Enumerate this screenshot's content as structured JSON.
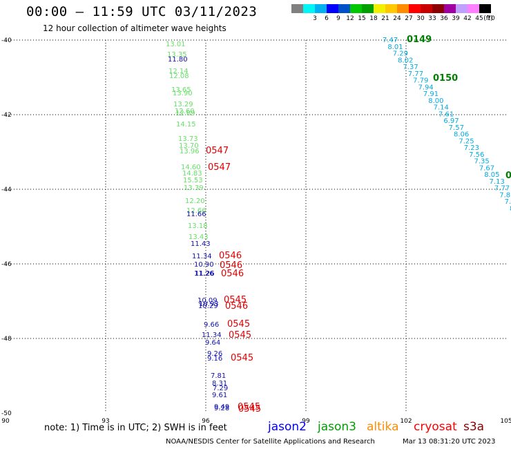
{
  "header": {
    "title": "00:00 – 11:59 UTC 03/11/2023",
    "subtitle": "12 hour collection of altimeter wave heights"
  },
  "legend": {
    "colors": [
      "#808080",
      "#00f5f5",
      "#00b0f0",
      "#0000ff",
      "#0050c8",
      "#00c800",
      "#00a000",
      "#f0f000",
      "#ffc800",
      "#ff8c00",
      "#ff0000",
      "#c80000",
      "#8b0000",
      "#a000a0",
      "#c0a0ff",
      "#ff80ff",
      "#000000"
    ],
    "labels": [
      "3",
      "6",
      "9",
      "12",
      "15",
      "18",
      "21",
      "24",
      "27",
      "30",
      "33",
      "36",
      "39",
      "42",
      "45",
      "70",
      "(ft)"
    ]
  },
  "axes": {
    "lat_labels": [
      "-40",
      "-42",
      "-44",
      "-46",
      "-48",
      "-50"
    ],
    "lon_labels": [
      "90",
      "93",
      "96",
      "99",
      "102",
      "105"
    ]
  },
  "tracks": {
    "green_track": [
      "13.01",
      "13.35",
      "12.14",
      "12.08",
      "13.65",
      "13.90",
      "13.29",
      "12.60",
      "12.89",
      "14.15",
      "13.73",
      "13.70",
      "13.96",
      "14.60",
      "14.83",
      "15.53",
      "13.39",
      "12.20",
      "12.66",
      "13.18",
      "13.43"
    ],
    "navy_track": [
      "11.80",
      "11.66",
      "11.43",
      "11.34",
      "11.26",
      "10.90",
      "11.26",
      "10.09",
      "10.93",
      "10.29",
      "9.66",
      "11.34",
      "9.64",
      "9.26",
      "9.16",
      "7.81",
      "8.31",
      "7.29",
      "9.61",
      "9.49",
      "9.28"
    ],
    "cyan_track": [
      "7.47",
      "8.01",
      "7.29",
      "8.02",
      "7.37",
      "7.77",
      "7.79",
      "7.94",
      "7.91",
      "8.00",
      "7.14",
      "7.61",
      "6.97",
      "7.57",
      "8.06",
      "7.25",
      "7.23",
      "7.56",
      "7.35",
      "7.67",
      "8.05",
      "7.13",
      "7.77",
      "7.85",
      "7.8",
      "8"
    ]
  },
  "time_labels": {
    "red": [
      "0547",
      "0547",
      "0546",
      "0546",
      "0546",
      "0545",
      "0546",
      "0545",
      "0545",
      "0545",
      "0545",
      "0545"
    ],
    "green": [
      "0149",
      "0150",
      "0"
    ]
  },
  "footer": {
    "note": "note: 1) Time is in UTC; 2) SWH is in feet",
    "satellites": [
      {
        "name": "jason2",
        "color": "#0000ff"
      },
      {
        "name": "jason3",
        "color": "#00a000"
      },
      {
        "name": "altika",
        "color": "#ff8c00"
      },
      {
        "name": "cryosat",
        "color": "#ff0000"
      },
      {
        "name": "s3a",
        "color": "#8b0000"
      }
    ],
    "credit": "NOAA/NESDIS Center for Satellite Applications and Research",
    "timestamp": "Mar 13 08:31:20 UTC 2023"
  }
}
